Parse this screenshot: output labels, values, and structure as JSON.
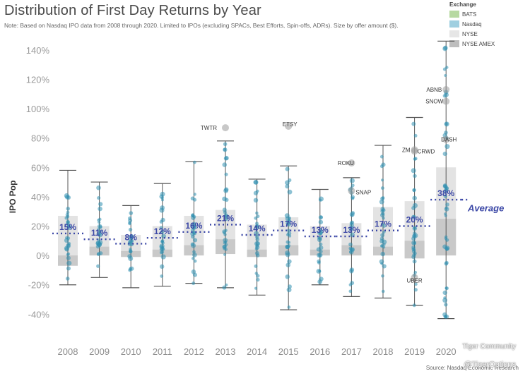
{
  "title": "Distribution of First Day Returns by Year",
  "note": "Note: Based on Nasdaq IPO data from 2008 through 2020. Limited to IPOs (excluding SPACs, Best Efforts, Spin-offs, ADRs). Size by offer amount ($).",
  "source": "Source: Nasdaq Economic Research",
  "watermark": {
    "line1": "Tiger Community",
    "line2": "@TigerOptions"
  },
  "legend": {
    "title": "Exchange",
    "items": [
      {
        "label": "BATS",
        "color": "#b7d9a1"
      },
      {
        "label": "Nasdaq",
        "color": "#9fcfe0"
      },
      {
        "label": "NYSE",
        "color": "#e6e6e6"
      },
      {
        "label": "NYSE AMEX",
        "color": "#bdbdbd"
      }
    ]
  },
  "chart_data": {
    "type": "box",
    "ylabel": "IPO Pop",
    "ylim": [
      -48,
      150
    ],
    "yticks": [
      -40,
      -20,
      0,
      20,
      40,
      60,
      80,
      100,
      120,
      140
    ],
    "ytick_labels": [
      "-40%",
      "-20%",
      "0%",
      "20%",
      "40%",
      "60%",
      "80%",
      "100%",
      "120%",
      "140%"
    ],
    "categories": [
      "2008",
      "2009",
      "2010",
      "2011",
      "2012",
      "2013",
      "2014",
      "2015",
      "2016",
      "2017",
      "2018",
      "2019",
      "2020"
    ],
    "average_labels": [
      "15%",
      "11%",
      "8%",
      "12%",
      "16%",
      "21%",
      "14%",
      "17%",
      "13%",
      "13%",
      "17%",
      "20%",
      "38%"
    ],
    "averages": [
      15,
      11,
      8,
      12,
      16,
      21,
      14,
      17,
      13,
      13,
      17,
      20,
      38
    ],
    "average_label": "Average",
    "boxes": [
      {
        "year": "2008",
        "whisker_low": -20,
        "q1": -7,
        "median": 0,
        "q3": 27,
        "whisker_high": 58
      },
      {
        "year": "2009",
        "whisker_low": -15,
        "q1": 0,
        "median": 6,
        "q3": 20,
        "whisker_high": 50
      },
      {
        "year": "2010",
        "whisker_low": -22,
        "q1": -1,
        "median": 3,
        "q3": 14,
        "whisker_high": 34
      },
      {
        "year": "2011",
        "whisker_low": -21,
        "q1": -1,
        "median": 4,
        "q3": 20,
        "whisker_high": 49
      },
      {
        "year": "2012",
        "whisker_low": -19,
        "q1": 0,
        "median": 7,
        "q3": 27,
        "whisker_high": 64
      },
      {
        "year": "2013",
        "whisker_low": -22,
        "q1": 1,
        "median": 11,
        "q3": 31,
        "whisker_high": 78
      },
      {
        "year": "2014",
        "whisker_low": -27,
        "q1": -1,
        "median": 4,
        "q3": 21,
        "whisker_high": 52
      },
      {
        "year": "2015",
        "whisker_low": -37,
        "q1": 0,
        "median": 7,
        "q3": 26,
        "whisker_high": 61
      },
      {
        "year": "2016",
        "whisker_low": -20,
        "q1": 0,
        "median": 4,
        "q3": 20,
        "whisker_high": 45
      },
      {
        "year": "2017",
        "whisker_low": -28,
        "q1": 0,
        "median": 7,
        "q3": 22,
        "whisker_high": 53
      },
      {
        "year": "2018",
        "whisker_low": -29,
        "q1": 0,
        "median": 6,
        "q3": 33,
        "whisker_high": 75
      },
      {
        "year": "2019",
        "whisker_low": -34,
        "q1": -2,
        "median": 10,
        "q3": 37,
        "whisker_high": 94
      },
      {
        "year": "2020",
        "whisker_low": -43,
        "q1": 0,
        "median": 25,
        "q3": 60,
        "whisker_high": 146
      }
    ],
    "annotations": [
      {
        "label": "TWTR",
        "year": "2013",
        "y": 87
      },
      {
        "label": "ETSY",
        "year": "2015",
        "y": 88
      },
      {
        "label": "ROKU",
        "year": "2017",
        "y": 63
      },
      {
        "label": "SNAP",
        "year": "2017",
        "y": 44
      },
      {
        "label": "ZM",
        "year": "2019",
        "y": 72
      },
      {
        "label": "CRWD",
        "year": "2019",
        "y": 71
      },
      {
        "label": "UBER",
        "year": "2019",
        "y": -15
      },
      {
        "label": "ABNB",
        "year": "2020",
        "y": 113
      },
      {
        "label": "SNOW",
        "year": "2020",
        "y": 105
      },
      {
        "label": "DASH",
        "year": "2020",
        "y": 79
      }
    ],
    "grid": false,
    "legend_position": "top-right"
  }
}
